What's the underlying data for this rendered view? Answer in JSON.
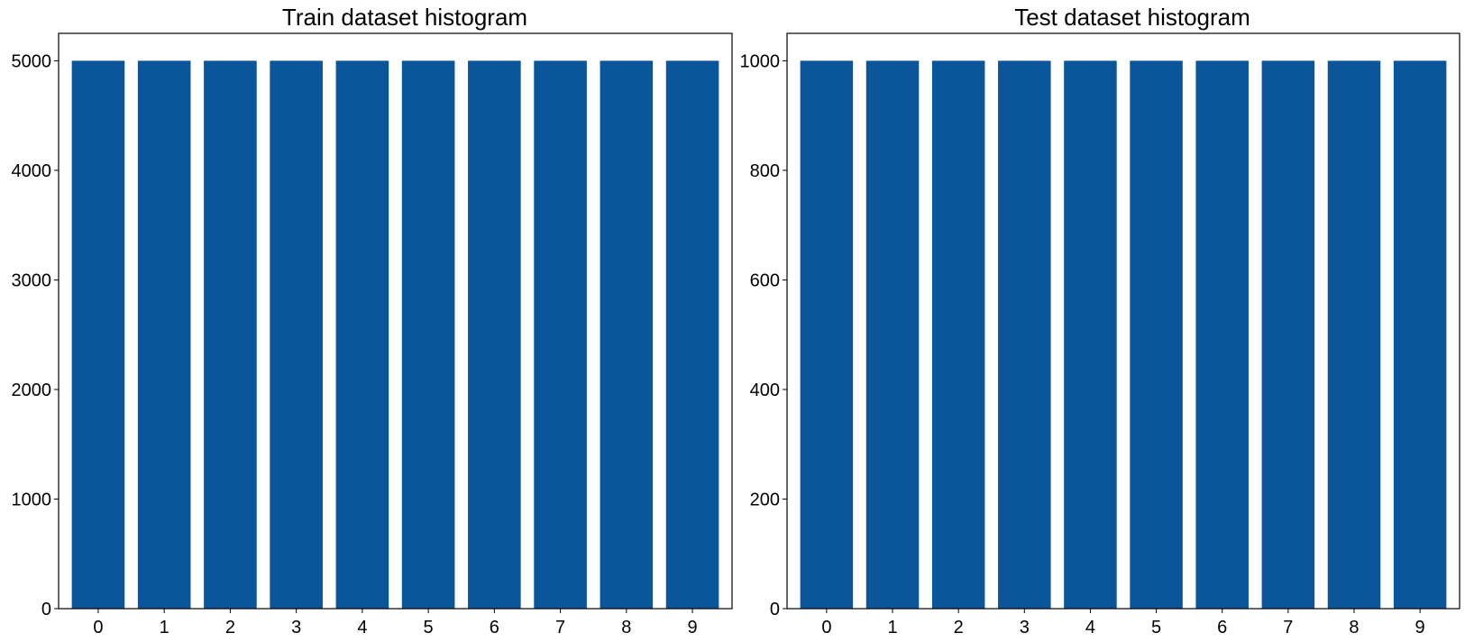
{
  "colors": {
    "bar": "#0b559a",
    "axis": "#000000",
    "background": "#ffffff"
  },
  "chart_data": [
    {
      "type": "bar",
      "title": "Train dataset histogram",
      "xlabel": "",
      "ylabel": "",
      "categories": [
        "0",
        "1",
        "2",
        "3",
        "4",
        "5",
        "6",
        "7",
        "8",
        "9"
      ],
      "values": [
        5000,
        5000,
        5000,
        5000,
        5000,
        5000,
        5000,
        5000,
        5000,
        5000
      ],
      "ylim": [
        0,
        5250
      ],
      "yticks": [
        0,
        1000,
        2000,
        3000,
        4000,
        5000
      ],
      "grid": false,
      "legend": "none"
    },
    {
      "type": "bar",
      "title": "Test dataset histogram",
      "xlabel": "",
      "ylabel": "",
      "categories": [
        "0",
        "1",
        "2",
        "3",
        "4",
        "5",
        "6",
        "7",
        "8",
        "9"
      ],
      "values": [
        1000,
        1000,
        1000,
        1000,
        1000,
        1000,
        1000,
        1000,
        1000,
        1000
      ],
      "ylim": [
        0,
        1050
      ],
      "yticks": [
        0,
        200,
        400,
        600,
        800,
        1000
      ],
      "grid": false,
      "legend": "none"
    }
  ]
}
